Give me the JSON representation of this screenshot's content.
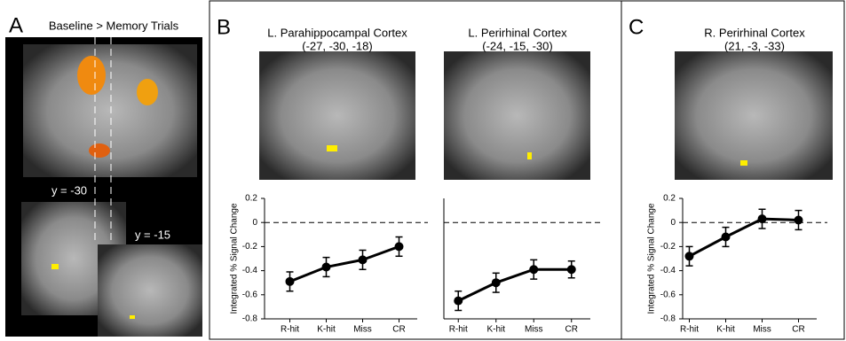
{
  "panels": [
    {
      "label": "A",
      "title": "Baseline > Memory Trials",
      "annotations": [
        "y = -30",
        "y = -15"
      ]
    },
    {
      "label": "B"
    },
    {
      "label": "C"
    }
  ],
  "chart_data": [
    {
      "type": "line",
      "title": "L. Parahippocampal Cortex",
      "subtitle": "(-27, -30, -18)",
      "ylabel": "Integrated % Signal Change",
      "categories": [
        "R-hit",
        "K-hit",
        "Miss",
        "CR"
      ],
      "series": [
        {
          "color": "#000000",
          "values": [
            -0.49,
            -0.37,
            -0.31,
            -0.2
          ],
          "errors": [
            0.08,
            0.08,
            0.08,
            0.08
          ]
        }
      ],
      "ylim": [
        -0.8,
        0.2
      ],
      "yticks": [
        0.2,
        0,
        -0.2,
        -0.4,
        -0.6,
        -0.8
      ],
      "hline": 0
    },
    {
      "type": "line",
      "title": "L. Perirhinal Cortex",
      "subtitle": "(-24, -15, -30)",
      "categories": [
        "R-hit",
        "K-hit",
        "Miss",
        "CR"
      ],
      "series": [
        {
          "color": "#000000",
          "values": [
            -0.65,
            -0.5,
            -0.39,
            -0.39
          ],
          "errors": [
            0.08,
            0.08,
            0.08,
            0.07
          ]
        }
      ],
      "ylim": [
        -0.8,
        0.2
      ],
      "hline": 0
    },
    {
      "type": "line",
      "title": "R. Perirhinal Cortex",
      "subtitle": "(21, -3, -33)",
      "ylabel": "Integrated % Signal Change",
      "categories": [
        "R-hit",
        "K-hit",
        "Miss",
        "CR"
      ],
      "series": [
        {
          "color": "#000000",
          "values": [
            -0.28,
            -0.12,
            0.03,
            0.02
          ],
          "errors": [
            0.08,
            0.08,
            0.08,
            0.08
          ]
        }
      ],
      "ylim": [
        -0.8,
        0.2
      ],
      "yticks": [
        0.2,
        0,
        -0.2,
        -0.4,
        -0.6,
        -0.8
      ],
      "hline": 0
    }
  ]
}
